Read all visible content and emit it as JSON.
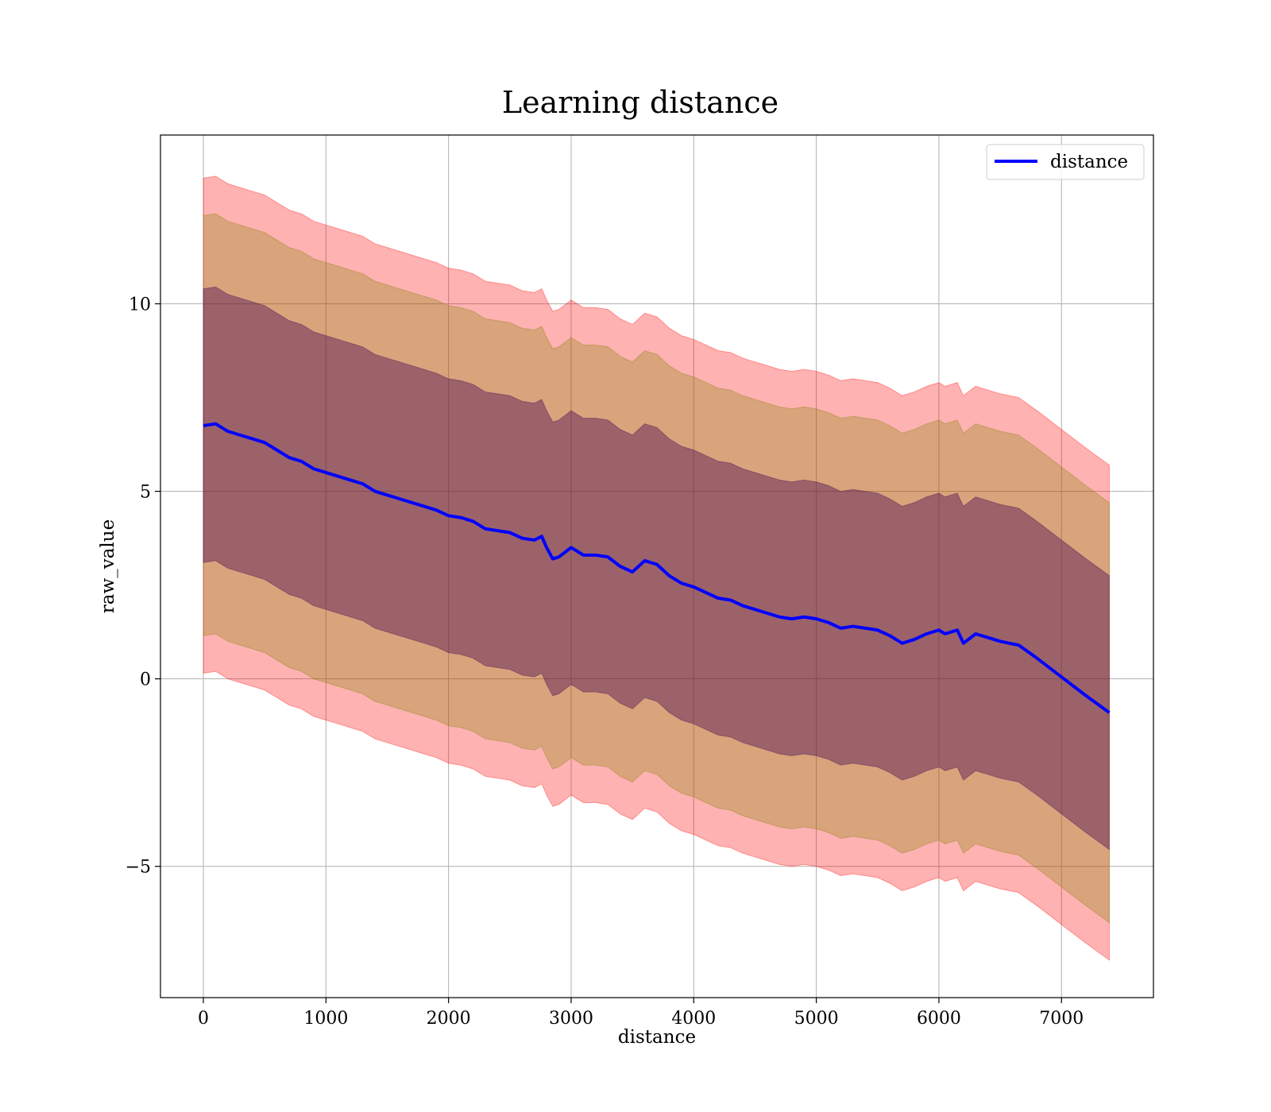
{
  "chart_data": {
    "type": "area",
    "title": "Learning distance",
    "xlabel": "distance",
    "ylabel": "raw_value",
    "xlim": [
      -350,
      7750
    ],
    "ylim": [
      -8.5,
      14.5
    ],
    "xticks": [
      0,
      1000,
      2000,
      3000,
      4000,
      5000,
      6000,
      7000
    ],
    "xtick_labels": [
      "0",
      "1000",
      "2000",
      "3000",
      "4000",
      "5000",
      "6000",
      "7000"
    ],
    "yticks": [
      -5,
      0,
      5,
      10
    ],
    "ytick_labels": [
      "−5",
      "0",
      "5",
      "10"
    ],
    "grid": true,
    "legend_position": "top-right",
    "x": [
      0,
      100,
      200,
      300,
      400,
      500,
      600,
      700,
      800,
      900,
      1000,
      1100,
      1200,
      1300,
      1400,
      1500,
      1600,
      1700,
      1800,
      1900,
      2000,
      2100,
      2200,
      2300,
      2400,
      2500,
      2600,
      2700,
      2760,
      2800,
      2850,
      2900,
      3000,
      3100,
      3200,
      3300,
      3400,
      3500,
      3600,
      3700,
      3800,
      3900,
      4000,
      4100,
      4200,
      4300,
      4400,
      4500,
      4600,
      4700,
      4800,
      4900,
      5000,
      5100,
      5200,
      5300,
      5400,
      5500,
      5600,
      5700,
      5750,
      5800,
      5900,
      6000,
      6050,
      6100,
      6150,
      6200,
      6300,
      6400,
      6500,
      6650,
      6800,
      7000,
      7200,
      7390
    ],
    "series": [
      {
        "name": "distance",
        "color": "#0000ff",
        "values": [
          6.75,
          6.8,
          6.6,
          6.5,
          6.4,
          6.3,
          6.1,
          5.9,
          5.8,
          5.6,
          5.5,
          5.4,
          5.3,
          5.2,
          5.0,
          4.9,
          4.8,
          4.7,
          4.6,
          4.5,
          4.35,
          4.3,
          4.2,
          4.0,
          3.95,
          3.9,
          3.75,
          3.7,
          3.8,
          3.5,
          3.2,
          3.25,
          3.5,
          3.3,
          3.3,
          3.25,
          3.0,
          2.85,
          3.15,
          3.05,
          2.75,
          2.55,
          2.45,
          2.3,
          2.15,
          2.1,
          1.95,
          1.85,
          1.75,
          1.65,
          1.6,
          1.65,
          1.6,
          1.5,
          1.35,
          1.4,
          1.35,
          1.3,
          1.15,
          0.95,
          1.0,
          1.05,
          1.2,
          1.3,
          1.2,
          1.25,
          1.3,
          0.95,
          1.2,
          1.1,
          1.0,
          0.9,
          0.55,
          0.05,
          -0.45,
          -0.9
        ]
      }
    ],
    "bands": [
      {
        "name": "band_outer",
        "color": "#ff0000",
        "opacity": 0.3,
        "lower_offset": -6.6,
        "upper_offset": 6.6
      },
      {
        "name": "band_middle",
        "color": "#808000",
        "opacity": 0.3,
        "lower_offset": -5.6,
        "upper_offset": 5.6
      },
      {
        "name": "band_inner",
        "color": "#400050",
        "opacity": 0.4,
        "lower_offset": -3.65,
        "upper_offset": 3.65
      }
    ],
    "legend": [
      "distance"
    ]
  }
}
